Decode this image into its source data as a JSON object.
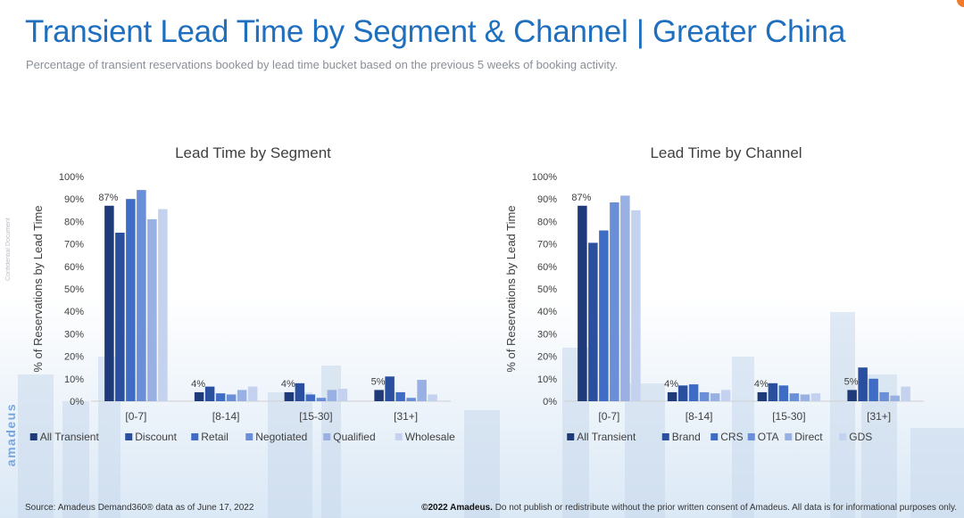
{
  "header": {
    "title": "Transient Lead Time by Segment & Channel | Greater China",
    "subtitle": "Percentage of transient reservations booked by lead time bucket based on the previous 5 weeks of booking activity."
  },
  "sidebar": {
    "confidential": "Confidential Document",
    "logo_text": "amadeus"
  },
  "footer": {
    "source": "Source: Amadeus Demand360® data as of June 17, 2022",
    "copyright_bold": "©2022 Amadeus.",
    "copyright_rest": "Do not publish or redistribute without the prior written consent of Amadeus. All data is for informational purposes only."
  },
  "colors": {
    "title": "#1f6fbf",
    "series": [
      "#1f3a78",
      "#2a4f9e",
      "#3f6cc4",
      "#6a8fd6",
      "#98b0e2",
      "#c4d1ef"
    ]
  },
  "chart_data": [
    {
      "type": "bar",
      "title": "Lead Time by Segment",
      "ylabel": "% of Reservations by Lead Time",
      "xlabel": "",
      "ylim": [
        0,
        100
      ],
      "yticks": [
        "0%",
        "10%",
        "20%",
        "30%",
        "40%",
        "50%",
        "60%",
        "70%",
        "80%",
        "90%",
        "100%"
      ],
      "grid": false,
      "legend": "bottom",
      "categories": [
        "[0-7]",
        "[8-14]",
        "[15-30]",
        "[31+]"
      ],
      "series": [
        {
          "name": "All Transient",
          "values": [
            87,
            4,
            4,
            5
          ],
          "labels": [
            "87%",
            "4%",
            "4%",
            "5%"
          ]
        },
        {
          "name": "Discount",
          "values": [
            75,
            6.5,
            8,
            11
          ]
        },
        {
          "name": "Retail",
          "values": [
            90,
            3.5,
            3,
            4
          ]
        },
        {
          "name": "Negotiated",
          "values": [
            94,
            3,
            1.5,
            1.5
          ]
        },
        {
          "name": "Qualified",
          "values": [
            81,
            5,
            5,
            9.5
          ]
        },
        {
          "name": "Wholesale",
          "values": [
            85.5,
            6.5,
            5.5,
            3
          ]
        }
      ]
    },
    {
      "type": "bar",
      "title": "Lead Time by Channel",
      "ylabel": "% of Reservations by Lead Time",
      "xlabel": "",
      "ylim": [
        0,
        100
      ],
      "yticks": [
        "0%",
        "10%",
        "20%",
        "30%",
        "40%",
        "50%",
        "60%",
        "70%",
        "80%",
        "90%",
        "100%"
      ],
      "grid": false,
      "legend": "bottom",
      "categories": [
        "[0-7]",
        "[8-14]",
        "[15-30]",
        "[31+]"
      ],
      "series": [
        {
          "name": "All Transient",
          "values": [
            87,
            4,
            4,
            5
          ],
          "labels": [
            "87%",
            "4%",
            "4%",
            "5%"
          ]
        },
        {
          "name": "Brand",
          "values": [
            70.5,
            7,
            8,
            15
          ]
        },
        {
          "name": "CRS",
          "values": [
            76,
            7.5,
            7,
            10
          ]
        },
        {
          "name": "OTA",
          "values": [
            88.5,
            4,
            3.5,
            4
          ]
        },
        {
          "name": "Direct",
          "values": [
            91.5,
            3.5,
            3,
            2.5
          ]
        },
        {
          "name": "GDS",
          "values": [
            85,
            5,
            3.5,
            6.5
          ]
        }
      ]
    }
  ]
}
